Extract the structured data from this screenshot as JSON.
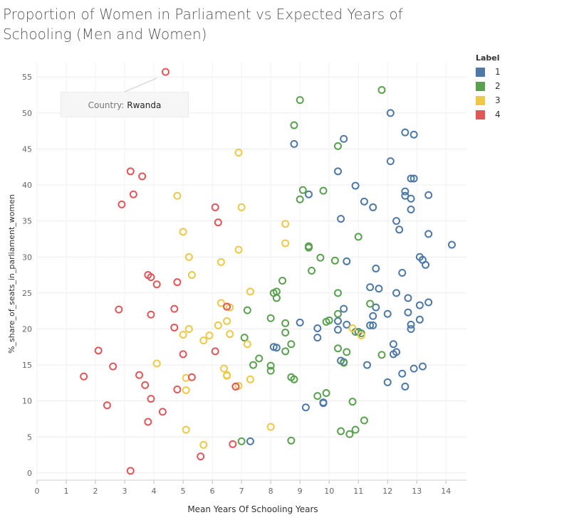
{
  "title": "Proportion of Women in Parliament vs Expected Years of Schooling (Men and Women)",
  "legend": {
    "title": "Label",
    "items": [
      {
        "label": "1",
        "color": "#4e79a7"
      },
      {
        "label": "2",
        "color": "#59a14f"
      },
      {
        "label": "3",
        "color": "#edc948"
      },
      {
        "label": "4",
        "color": "#e15759"
      }
    ]
  },
  "tooltip": {
    "label": "Country:",
    "value": "Rwanda"
  },
  "chart_data": {
    "type": "scatter",
    "xlabel": "Mean Years Of Schooling Years",
    "ylabel": "%_share_of_seats_in_parliament_women",
    "xlim": [
      0,
      14.7
    ],
    "ylim": [
      -1,
      57
    ],
    "x_ticks": [
      0,
      1,
      2,
      3,
      4,
      5,
      6,
      7,
      8,
      9,
      10,
      11,
      12,
      13,
      14
    ],
    "y_ticks": [
      0,
      5,
      10,
      15,
      20,
      25,
      30,
      35,
      40,
      45,
      50,
      55
    ],
    "grid": true,
    "legend_position": "right",
    "series": [
      {
        "name": "1",
        "color": "#4e79a7",
        "points": [
          [
            8.8,
            45.7
          ],
          [
            10.5,
            46.4
          ],
          [
            10.3,
            41.9
          ],
          [
            9.3,
            38.7
          ],
          [
            10.4,
            35.3
          ],
          [
            10.9,
            39.9
          ],
          [
            11.2,
            37.7
          ],
          [
            11.5,
            36.9
          ],
          [
            12.1,
            50.0
          ],
          [
            12.6,
            47.3
          ],
          [
            12.9,
            47.0
          ],
          [
            12.1,
            43.3
          ],
          [
            12.8,
            40.9
          ],
          [
            12.9,
            40.9
          ],
          [
            12.6,
            39.1
          ],
          [
            12.6,
            38.5
          ],
          [
            12.8,
            38.1
          ],
          [
            13.4,
            38.6
          ],
          [
            12.8,
            36.6
          ],
          [
            12.3,
            35.0
          ],
          [
            12.4,
            33.8
          ],
          [
            13.4,
            33.2
          ],
          [
            14.2,
            31.7
          ],
          [
            13.1,
            30.0
          ],
          [
            13.2,
            29.6
          ],
          [
            13.3,
            28.9
          ],
          [
            12.5,
            27.8
          ],
          [
            11.6,
            28.4
          ],
          [
            10.6,
            29.4
          ],
          [
            11.4,
            25.8
          ],
          [
            11.7,
            25.6
          ],
          [
            12.3,
            25.0
          ],
          [
            12.7,
            24.3
          ],
          [
            13.1,
            23.3
          ],
          [
            13.4,
            23.7
          ],
          [
            11.6,
            23.0
          ],
          [
            12.0,
            22.1
          ],
          [
            12.7,
            22.3
          ],
          [
            11.5,
            21.8
          ],
          [
            10.3,
            21.1
          ],
          [
            10.5,
            22.8
          ],
          [
            9.6,
            20.1
          ],
          [
            10.3,
            19.9
          ],
          [
            10.6,
            20.6
          ],
          [
            11.4,
            20.5
          ],
          [
            11.5,
            20.5
          ],
          [
            12.8,
            20.6
          ],
          [
            12.8,
            20.0
          ],
          [
            13.1,
            21.3
          ],
          [
            9.0,
            20.9
          ],
          [
            11.0,
            19.6
          ],
          [
            9.6,
            18.8
          ],
          [
            8.1,
            17.5
          ],
          [
            8.2,
            17.4
          ],
          [
            12.2,
            17.9
          ],
          [
            12.2,
            16.5
          ],
          [
            12.3,
            16.8
          ],
          [
            10.4,
            15.6
          ],
          [
            10.5,
            15.4
          ],
          [
            11.3,
            15.0
          ],
          [
            12.9,
            14.5
          ],
          [
            13.2,
            14.8
          ],
          [
            12.5,
            13.8
          ],
          [
            12.0,
            12.6
          ],
          [
            12.6,
            12.0
          ],
          [
            9.8,
            9.7
          ],
          [
            9.8,
            9.8
          ],
          [
            9.2,
            9.1
          ],
          [
            7.3,
            4.4
          ]
        ]
      },
      {
        "name": "2",
        "color": "#59a14f",
        "points": [
          [
            11.8,
            53.2
          ],
          [
            9.0,
            51.8
          ],
          [
            8.8,
            48.3
          ],
          [
            10.3,
            45.4
          ],
          [
            9.1,
            39.3
          ],
          [
            9.8,
            39.2
          ],
          [
            9.0,
            38.0
          ],
          [
            9.3,
            31.3
          ],
          [
            9.3,
            31.5
          ],
          [
            11.0,
            32.8
          ],
          [
            9.7,
            29.9
          ],
          [
            10.2,
            29.5
          ],
          [
            8.4,
            26.7
          ],
          [
            9.4,
            28.1
          ],
          [
            8.1,
            25.0
          ],
          [
            8.2,
            25.2
          ],
          [
            8.2,
            24.3
          ],
          [
            10.3,
            25.0
          ],
          [
            11.4,
            23.5
          ],
          [
            7.2,
            22.6
          ],
          [
            8.0,
            21.5
          ],
          [
            10.3,
            22.1
          ],
          [
            8.5,
            20.8
          ],
          [
            9.9,
            21.0
          ],
          [
            10.0,
            21.2
          ],
          [
            10.9,
            19.6
          ],
          [
            8.5,
            19.5
          ],
          [
            7.1,
            18.8
          ],
          [
            8.7,
            17.9
          ],
          [
            11.1,
            19.4
          ],
          [
            10.3,
            17.3
          ],
          [
            10.6,
            16.8
          ],
          [
            8.5,
            16.9
          ],
          [
            11.8,
            16.4
          ],
          [
            7.6,
            15.9
          ],
          [
            7.4,
            15.0
          ],
          [
            8.0,
            14.9
          ],
          [
            8.0,
            14.2
          ],
          [
            10.5,
            15.3
          ],
          [
            8.7,
            13.3
          ],
          [
            8.8,
            13.0
          ],
          [
            9.6,
            10.7
          ],
          [
            9.9,
            11.1
          ],
          [
            10.8,
            9.9
          ],
          [
            11.2,
            7.3
          ],
          [
            10.9,
            6.0
          ],
          [
            10.4,
            5.8
          ],
          [
            10.7,
            5.4
          ],
          [
            7.0,
            4.4
          ],
          [
            8.7,
            4.5
          ]
        ]
      },
      {
        "name": "3",
        "color": "#edc948",
        "points": [
          [
            6.9,
            44.5
          ],
          [
            4.8,
            38.5
          ],
          [
            7.0,
            36.9
          ],
          [
            8.5,
            34.6
          ],
          [
            5.0,
            33.5
          ],
          [
            8.5,
            31.9
          ],
          [
            6.9,
            31.0
          ],
          [
            5.2,
            30.0
          ],
          [
            6.3,
            29.3
          ],
          [
            5.3,
            27.5
          ],
          [
            7.3,
            25.2
          ],
          [
            6.3,
            23.6
          ],
          [
            6.5,
            23.1
          ],
          [
            6.5,
            21.1
          ],
          [
            6.2,
            20.5
          ],
          [
            5.2,
            20.0
          ],
          [
            5.0,
            19.2
          ],
          [
            6.6,
            19.3
          ],
          [
            5.9,
            19.1
          ],
          [
            5.7,
            18.4
          ],
          [
            7.2,
            17.9
          ],
          [
            4.1,
            15.2
          ],
          [
            6.4,
            14.5
          ],
          [
            6.5,
            13.6
          ],
          [
            6.5,
            13.5
          ],
          [
            5.1,
            13.2
          ],
          [
            7.3,
            13.0
          ],
          [
            6.9,
            12.1
          ],
          [
            5.1,
            11.5
          ],
          [
            8.0,
            6.4
          ],
          [
            5.1,
            6.0
          ],
          [
            5.7,
            3.9
          ],
          [
            10.8,
            20.1
          ],
          [
            11.1,
            19.1
          ],
          [
            6.6,
            23.0
          ]
        ]
      },
      {
        "name": "4",
        "color": "#e15759",
        "points": [
          [
            4.4,
            55.7
          ],
          [
            3.2,
            41.9
          ],
          [
            3.6,
            41.2
          ],
          [
            3.3,
            38.7
          ],
          [
            2.9,
            37.3
          ],
          [
            6.1,
            36.9
          ],
          [
            6.2,
            34.8
          ],
          [
            3.8,
            27.5
          ],
          [
            3.9,
            27.2
          ],
          [
            4.8,
            26.5
          ],
          [
            4.1,
            26.2
          ],
          [
            6.5,
            23.1
          ],
          [
            2.8,
            22.7
          ],
          [
            4.7,
            22.8
          ],
          [
            3.9,
            22.0
          ],
          [
            4.7,
            20.2
          ],
          [
            6.1,
            16.9
          ],
          [
            2.1,
            17.0
          ],
          [
            5.0,
            16.5
          ],
          [
            2.6,
            14.8
          ],
          [
            1.6,
            13.4
          ],
          [
            3.5,
            13.6
          ],
          [
            5.3,
            13.3
          ],
          [
            3.7,
            12.2
          ],
          [
            6.8,
            12.0
          ],
          [
            4.8,
            11.6
          ],
          [
            3.9,
            10.3
          ],
          [
            2.4,
            9.4
          ],
          [
            4.3,
            8.5
          ],
          [
            3.8,
            7.1
          ],
          [
            6.7,
            4.0
          ],
          [
            5.6,
            2.3
          ],
          [
            3.2,
            0.3
          ]
        ]
      }
    ]
  }
}
